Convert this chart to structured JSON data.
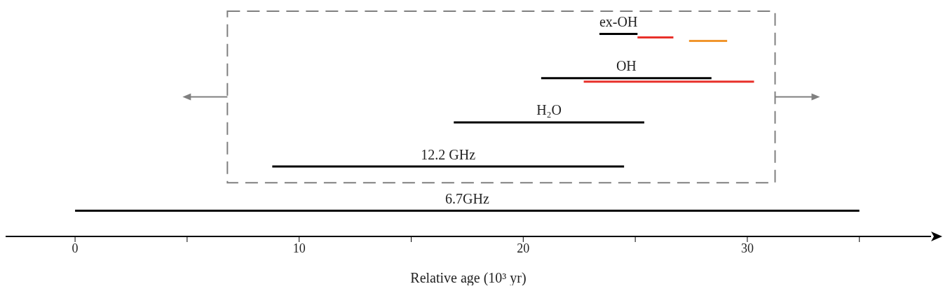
{
  "chart_data": {
    "type": "bar",
    "orientation": "horizontal",
    "xlabel": "Relative age (10³ yr)",
    "categories": [
      "ex-OH",
      "OH",
      "H₂O",
      "12.2 GHz",
      "6.7GHz"
    ],
    "series": [
      {
        "color": "#000000",
        "base": [
          23.4,
          20.8,
          16.9,
          8.8,
          0
        ],
        "values": [
          1.7,
          7.6,
          8.5,
          15.7,
          35
        ]
      },
      {
        "color": "#e8302a",
        "base": [
          25.1,
          22.7,
          null,
          null,
          null
        ],
        "values": [
          1.6,
          7.6,
          null,
          null,
          null
        ]
      },
      {
        "color": "#f0962e",
        "base": [
          27.4,
          null,
          null,
          null,
          null
        ],
        "values": [
          1.7,
          null,
          null,
          null,
          null
        ]
      }
    ],
    "xlim": [
      -3.1,
      38.2
    ],
    "xticks": [
      0,
      {
        "value": 5,
        "label": null
      },
      10,
      {
        "value": 15,
        "label": null
      },
      20,
      {
        "value": 25,
        "label": null
      },
      30,
      {
        "value": 35,
        "label": null
      }
    ],
    "tick_labels": "x"
  }
}
